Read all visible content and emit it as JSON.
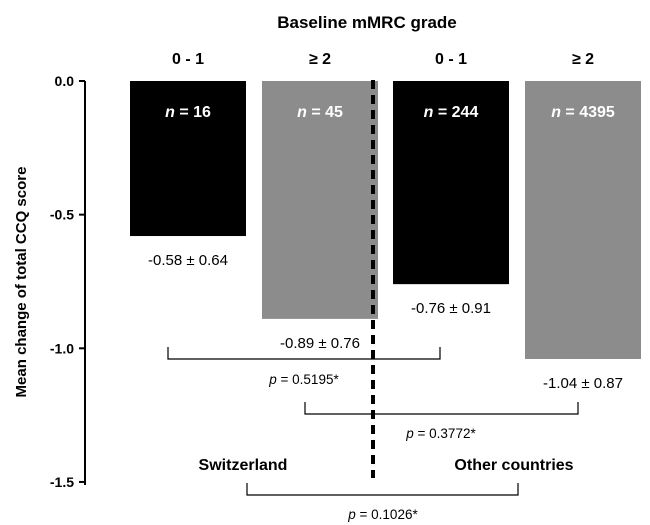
{
  "chart_data": {
    "type": "bar",
    "title": "Baseline mMRC grade",
    "ylabel": "Mean change of total CCQ score",
    "ylim": [
      -1.5,
      0.0
    ],
    "yticks": [
      "0.0",
      "-0.5",
      "-1.0",
      "-1.5"
    ],
    "categories": [
      "0 - 1",
      "≥ 2",
      "0 - 1",
      "≥ 2"
    ],
    "groups": [
      "Switzerland",
      "Other countries"
    ],
    "bars": [
      {
        "category": "0 - 1",
        "group": "Switzerland",
        "value": -0.58,
        "sd": 0.64,
        "n": "16",
        "value_label": "-0.58 ± 0.64",
        "color": "#000000"
      },
      {
        "category": "≥ 2",
        "group": "Switzerland",
        "value": -0.89,
        "sd": 0.76,
        "n": "45",
        "value_label": "-0.89 ± 0.76",
        "color": "#8c8c8c"
      },
      {
        "category": "0 - 1",
        "group": "Other countries",
        "value": -0.76,
        "sd": 0.91,
        "n": "244",
        "value_label": "-0.76 ± 0.91",
        "color": "#000000"
      },
      {
        "category": "≥ 2",
        "group": "Other countries",
        "value": -1.04,
        "sd": 0.87,
        "n": "4395",
        "value_label": "-1.04 ± 0.87",
        "color": "#8c8c8c"
      }
    ],
    "comparisons": [
      {
        "bars": [
          0,
          2
        ],
        "p_value": "0.5195*"
      },
      {
        "bars": [
          1,
          3
        ],
        "p_value": "0.3772*"
      },
      {
        "bars": [
          "Switzerland",
          "Other countries"
        ],
        "p_value": "0.1026*"
      }
    ],
    "n_prefix": "n",
    "p_prefix": "p",
    "divider": "dashed"
  }
}
